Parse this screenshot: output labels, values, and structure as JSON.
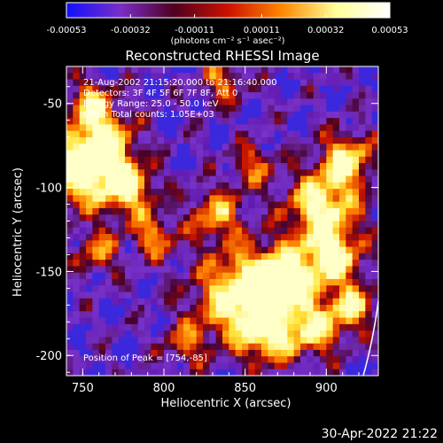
{
  "chart_data": {
    "type": "heatmap",
    "title": "Reconstructed RHESSI Image",
    "xlabel": "Heliocentric X (arcsec)",
    "ylabel": "Heliocentric Y (arcsec)",
    "xlim": [
      740,
      932
    ],
    "ylim": [
      -212,
      -28
    ],
    "x_ticks": [
      750,
      800,
      850,
      900
    ],
    "y_ticks": [
      -50,
      -100,
      -150,
      -200
    ],
    "colorbar": {
      "range": [
        -0.00053,
        0.00053
      ],
      "tick_values": [
        -0.00053,
        -0.00032,
        -0.00011,
        0.00011,
        0.00032,
        0.00053
      ],
      "tick_labels": [
        "-0.00053",
        "-0.00032",
        "-0.00011",
        "0.00011",
        "0.00032",
        "0.00053"
      ],
      "unit_label": "(photons cm⁻² s⁻¹ asec⁻²)",
      "colors": [
        "#1010ff",
        "#7a2ec8",
        "#500020",
        "#cc1100",
        "#ff8800",
        "#ffff99",
        "#ffffff"
      ]
    },
    "annotations": [
      "21-Aug-2002 21:15:20.000 to 21:16:40.000",
      "Detectors: 3F 4F 5F 6F 7F 8F, Att 0",
      "Energy Range: 25.0 - 50.0 keV",
      "Clean    Total counts: 1.05E+03"
    ],
    "peak_label": "Position of Peak = [754,-85]",
    "peak": [
      754,
      -85
    ],
    "grid": false
  },
  "footer": {
    "timestamp": "30-Apr-2022 21:22"
  }
}
